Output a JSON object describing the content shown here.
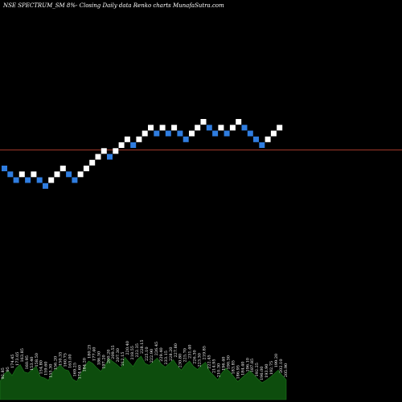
{
  "chart_data": {
    "type": "renko",
    "title": "NSE SPECTRUM_SM 8%-   Closing Daily data  Renko  charts MunafaSutra.com",
    "reference_line": {
      "color": "#a0382a"
    },
    "colors": {
      "up": "#ffffff",
      "down": "#2f7de0",
      "volume": "#0d4d0d",
      "background": "#000000"
    },
    "bricks": [
      {
        "dir": "down"
      },
      {
        "dir": "down"
      },
      {
        "dir": "down"
      },
      {
        "dir": "up"
      },
      {
        "dir": "down"
      },
      {
        "dir": "up"
      },
      {
        "dir": "down"
      },
      {
        "dir": "down"
      },
      {
        "dir": "up"
      },
      {
        "dir": "up"
      },
      {
        "dir": "up"
      },
      {
        "dir": "down"
      },
      {
        "dir": "down"
      },
      {
        "dir": "up"
      },
      {
        "dir": "up"
      },
      {
        "dir": "up"
      },
      {
        "dir": "up"
      },
      {
        "dir": "up"
      },
      {
        "dir": "down"
      },
      {
        "dir": "up"
      },
      {
        "dir": "up"
      },
      {
        "dir": "up"
      },
      {
        "dir": "down"
      },
      {
        "dir": "up"
      },
      {
        "dir": "up"
      },
      {
        "dir": "up"
      },
      {
        "dir": "down"
      },
      {
        "dir": "up"
      },
      {
        "dir": "down"
      },
      {
        "dir": "up"
      },
      {
        "dir": "down"
      },
      {
        "dir": "down"
      },
      {
        "dir": "up"
      },
      {
        "dir": "up"
      },
      {
        "dir": "up"
      },
      {
        "dir": "down"
      },
      {
        "dir": "down"
      },
      {
        "dir": "up"
      },
      {
        "dir": "down"
      },
      {
        "dir": "up"
      },
      {
        "dir": "up"
      },
      {
        "dir": "down"
      },
      {
        "dir": "down"
      },
      {
        "dir": "down"
      },
      {
        "dir": "down"
      },
      {
        "dir": "up"
      },
      {
        "dir": "up"
      },
      {
        "dir": "up"
      }
    ],
    "volume_labels": [
      "92.85",
      "95",
      "174.45",
      "173.05",
      "163.85",
      "160.95",
      "153.40",
      "158.50",
      "154.80",
      "159.60",
      "155.30",
      "156.20",
      "150.35",
      "160.75",
      "165.00",
      "169.25",
      "174.60",
      "184.20",
      "180.25",
      "177.40",
      "186.50",
      "197.20",
      "200.20",
      "209.55",
      "207.30",
      "212.15",
      "220.40",
      "218.55",
      "222.35",
      "228.15",
      "225.10",
      "222.90",
      "226.45",
      "229.40",
      "233.15",
      "228.20",
      "227.80",
      "230.80",
      "225.70",
      "231.40",
      "226.30",
      "223.30",
      "219.85",
      "222.45",
      "214.95",
      "210.30",
      "196.40",
      "190.30",
      "183.85",
      "186.95",
      "184.40",
      "196.10",
      "187.85",
      "192.25",
      "196.00",
      "193.90",
      "192.75",
      "199.20",
      "202.10",
      "205.90"
    ],
    "volume_levels": [
      0.3,
      0.42,
      0.48,
      0.4,
      0.52,
      0.58,
      0.46,
      0.44,
      0.5,
      0.55,
      0.38,
      0.36,
      0.32,
      0.45,
      0.52,
      0.57,
      0.5,
      0.48,
      0.34,
      0.3,
      0.42,
      0.55,
      0.64,
      0.6,
      0.53,
      0.47,
      0.56,
      0.68,
      0.63,
      0.58,
      0.52,
      0.7,
      0.62,
      0.55,
      0.66,
      0.72,
      0.6,
      0.57,
      0.63,
      0.69,
      0.59,
      0.54,
      0.6,
      0.66,
      0.56,
      0.49,
      0.58,
      0.64,
      0.55,
      0.5,
      0.57,
      0.62,
      0.47,
      0.4,
      0.33,
      0.44,
      0.52,
      0.46,
      0.38,
      0.3,
      0.36,
      0.42,
      0.48,
      0.41,
      0.34,
      0.28,
      0.32,
      0.37,
      0.43,
      0.49,
      0.4,
      0.33
    ]
  }
}
